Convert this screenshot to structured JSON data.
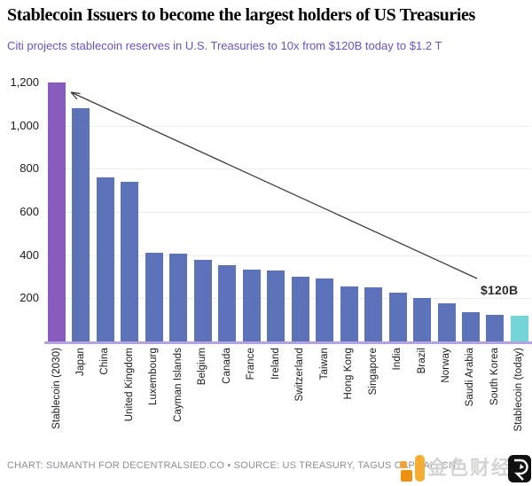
{
  "chart_data": {
    "type": "bar",
    "title": "Stablecoin Issuers to become the largest holders of US Treasuries",
    "subtitle": "Citi projects stablecoin reserves in U.S. Treasuries to 10x from $120B today to $1.2 T",
    "categories": [
      "Stablecoin (2030)",
      "Japan",
      "China",
      "United Kingdom",
      "Luxembourg",
      "Cayman Islands",
      "Belgium",
      "Canada",
      "France",
      "Ireland",
      "Switzerland",
      "Taiwan",
      "Hong Kong",
      "Singapore",
      "India",
      "Brazil",
      "Norway",
      "Saudi Arabia",
      "South Korea",
      "Stablecoin (today)"
    ],
    "values": [
      1200,
      1080,
      760,
      740,
      410,
      405,
      378,
      352,
      335,
      330,
      302,
      290,
      256,
      250,
      227,
      202,
      178,
      135,
      125,
      120
    ],
    "ylim": [
      0,
      1200
    ],
    "yticks": [
      200,
      400,
      600,
      800,
      1000,
      1200
    ],
    "ytick_labels": [
      "200",
      "400",
      "600",
      "800",
      "1,000",
      "1,200"
    ],
    "grid": "horizontal",
    "legend": "none",
    "colors": {
      "highlight_2030": "#8a5bbe",
      "default": "#5c72b9",
      "highlight_today": "#74d4d8",
      "baseline": "#b5a2e1",
      "subtitle_accent": "#6b52c8"
    },
    "annotation": {
      "text": "$120B",
      "arrow_points_to": "Stablecoin (2030)"
    }
  },
  "footer": {
    "text": "CHART: SUMANTH FOR DECENTRALSIED.CO • SOURCE: US TREASURY, TAGUS CAPITAL, CITI"
  },
  "watermark": {
    "cjk_text": "金色财经"
  }
}
